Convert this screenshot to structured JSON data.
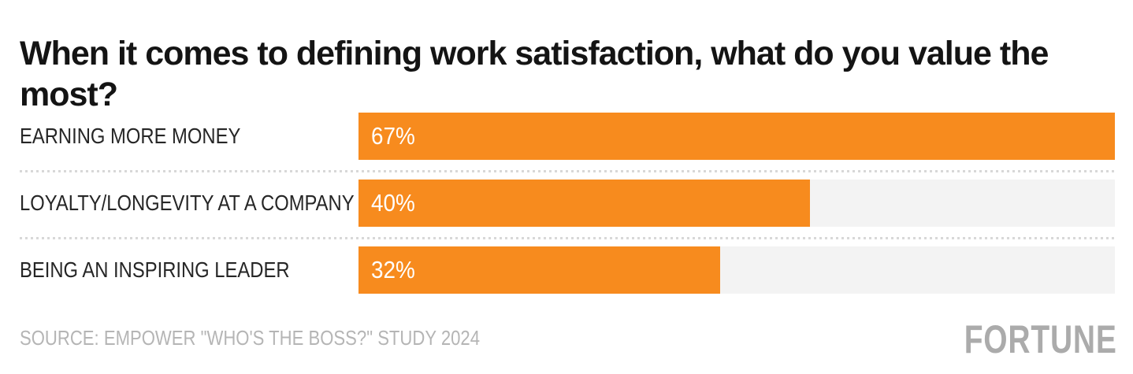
{
  "title": "When it comes to defining work satisfaction, what do you value the most?",
  "chart_data": {
    "type": "bar",
    "orientation": "horizontal",
    "title": "When it comes to defining work satisfaction, what do you value the most?",
    "categories": [
      "EARNING MORE MONEY",
      "LOYALTY/LONGEVITY AT A COMPANY",
      "BEING AN INSPIRING LEADER"
    ],
    "values": [
      67,
      40,
      32
    ],
    "value_labels": [
      "67%",
      "40%",
      "32%"
    ],
    "max_value": 67,
    "xlabel": "",
    "ylabel": "",
    "grid": false,
    "legend": false,
    "separator_style": "dotted",
    "bar_color": "#F78B1E",
    "track_color": "#F3F3F3",
    "value_label_color": "#FFFFFF",
    "category_label_color": "#262626"
  },
  "footer": {
    "source": "SOURCE: EMPOWER \"WHO'S THE BOSS?\" STUDY 2024",
    "logo_text": "FORTUNE",
    "logo_color": "#ABABAB",
    "source_color": "#B5B5B5"
  }
}
